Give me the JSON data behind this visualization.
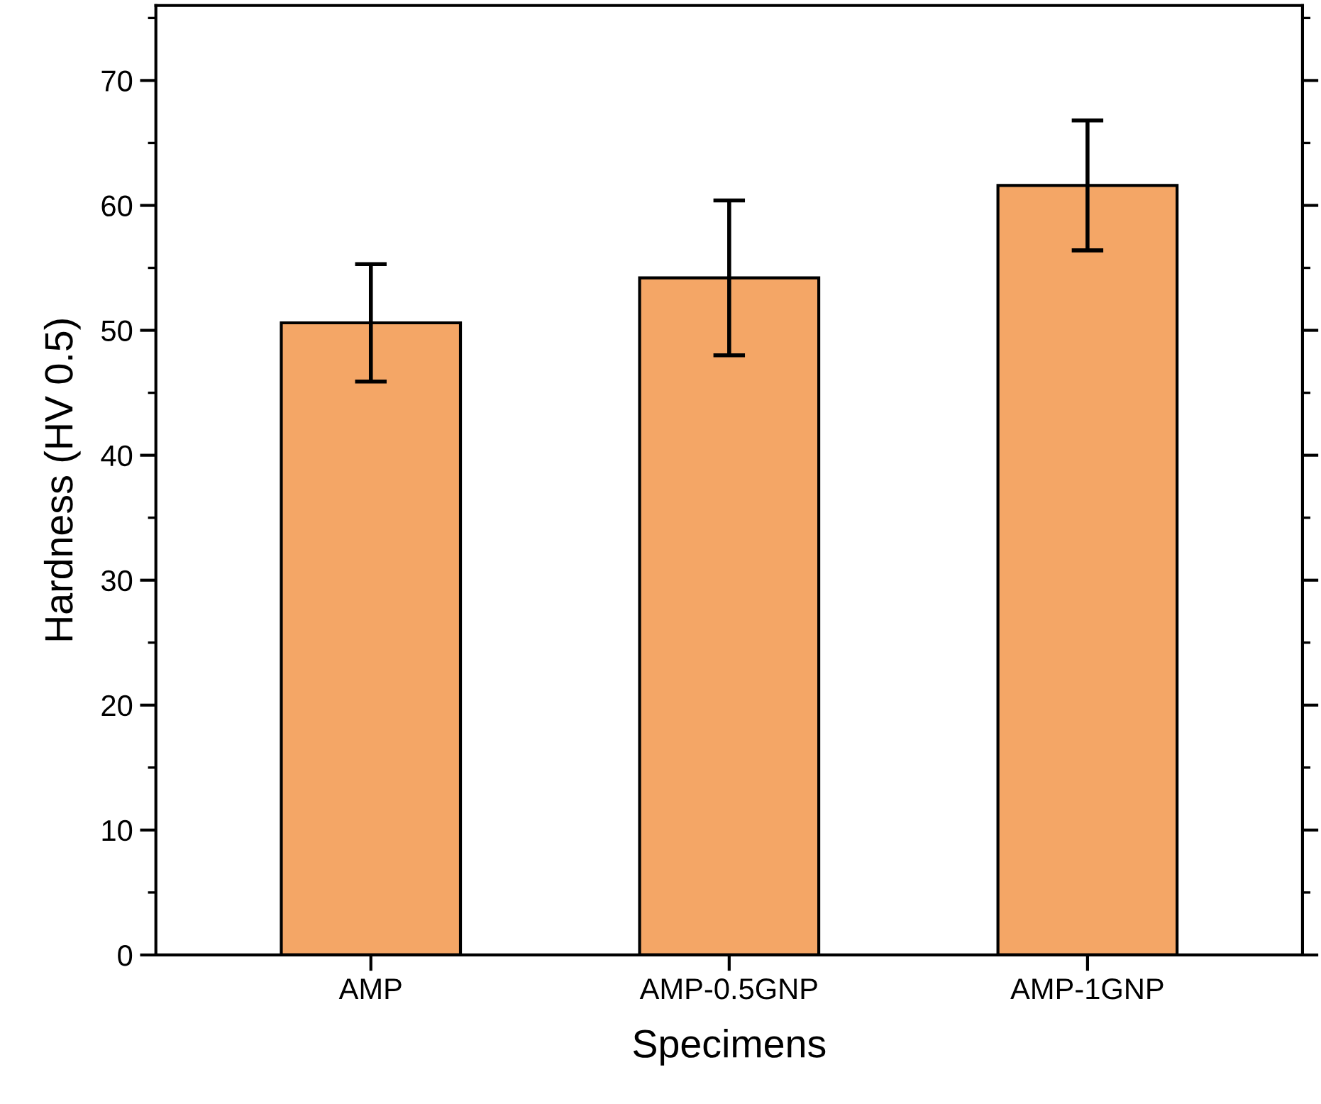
{
  "chart_data": {
    "type": "bar",
    "xlabel": "Specimens",
    "ylabel": "Hardness (HV 0.5)",
    "categories": [
      "AMP",
      "AMP-0.5GNP",
      "AMP-1GNP"
    ],
    "values": [
      50.6,
      54.2,
      61.6
    ],
    "errors": [
      4.7,
      6.2,
      5.2
    ],
    "color": "#f4a666",
    "ylim": [
      0,
      76
    ],
    "yticks": [
      0,
      {
        "value": 5,
        "label": null
      },
      10,
      {
        "value": 15,
        "label": null
      },
      20,
      {
        "value": 25,
        "label": null
      },
      30,
      {
        "value": 35,
        "label": null
      },
      40,
      {
        "value": 45,
        "label": null
      },
      50,
      {
        "value": 55,
        "label": null
      },
      60,
      {
        "value": 65,
        "label": null
      },
      70,
      {
        "value": 75,
        "label": null
      }
    ],
    "grid": false,
    "legend": false
  }
}
